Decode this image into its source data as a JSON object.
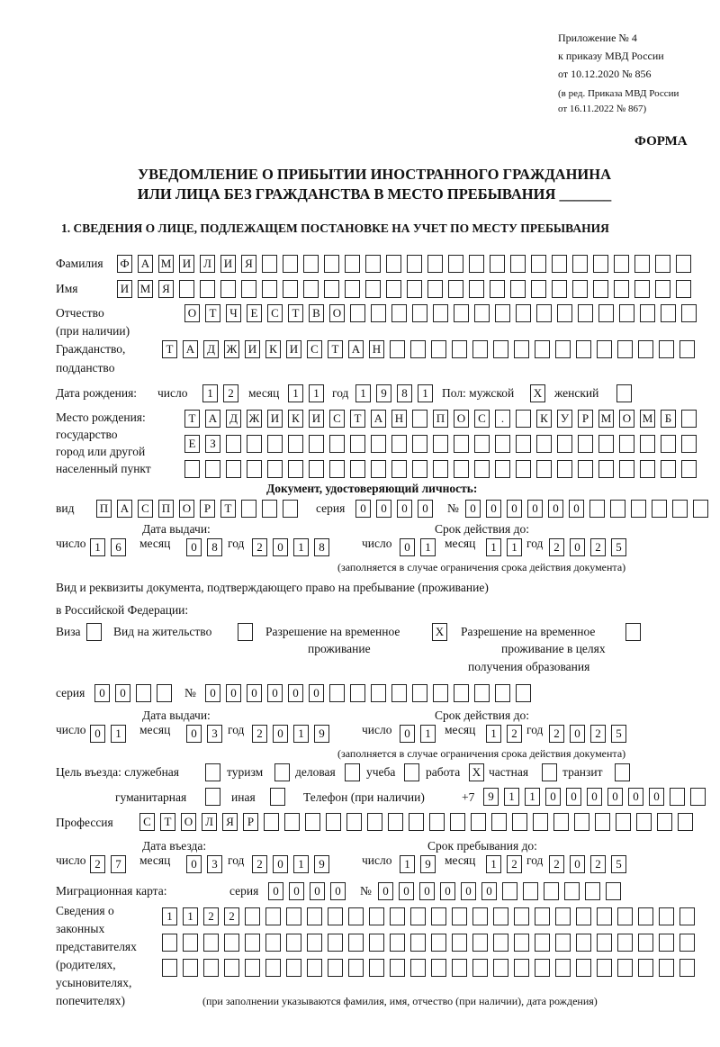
{
  "header": {
    "appendix": "Приложение № 4",
    "order": "к приказу МВД России",
    "order_date": "от 10.12.2020 № 856",
    "edition1": "(в ред. Приказа МВД России",
    "edition2": "от 16.11.2022 № 867)",
    "form_label": "ФОРМА"
  },
  "title": {
    "line1": "УВЕДОМЛЕНИЕ О ПРИБЫТИИ ИНОСТРАННОГО ГРАЖДАНИНА",
    "line2": "ИЛИ ЛИЦА БЕЗ ГРАЖДАНСТВА В МЕСТО ПРЕБЫВАНИЯ _______"
  },
  "section1": {
    "heading": "1. СВЕДЕНИЯ О ЛИЦЕ, ПОДЛЕЖАЩЕМ ПОСТАНОВКЕ НА УЧЕТ ПО МЕСТУ ПРЕБЫВАНИЯ",
    "labels": {
      "surname": "Фамилия",
      "name": "Имя",
      "patronymic1": "Отчество",
      "patronymic2": "(при наличии)",
      "citizenship1": "Гражданство,",
      "citizenship2": "подданство",
      "birth_date": "Дата рождения:",
      "day": "число",
      "month": "месяц",
      "year": "год",
      "sex": "Пол: мужской",
      "female": "женский",
      "birthplace1": "Место рождения:",
      "birthplace2": "государство",
      "birthplace3": "город или другой",
      "birthplace4": "населенный пункт",
      "id_doc": "Документ, удостоверяющий личность:",
      "kind": "вид",
      "series": "серия",
      "number": "№",
      "issue_date": "Дата выдачи:",
      "valid_until": "Срок действия до:",
      "valid_note": "(заполняется в случае ограничения срока действия документа)",
      "permit1": "Вид и реквизиты документа, подтверждающего право на пребывание (проживание)",
      "permit2": "в Российской Федерации:",
      "visa": "Виза",
      "residence": "Вид на жительство",
      "trp1": "Разрешение на временное",
      "trp2": "проживание",
      "trp_edu1": "Разрешение на временное",
      "trp_edu2": "проживание в целях",
      "trp_edu3": "получения образования",
      "purpose": "Цель въезда: служебная",
      "tourism": "туризм",
      "business": "деловая",
      "study": "учеба",
      "work": "работа",
      "private": "частная",
      "transit": "транзит",
      "humanitarian": "гуманитарная",
      "other": "иная",
      "phone": "Телефон (при наличии)",
      "phone_prefix": "+7",
      "profession": "Профессия",
      "entry_date": "Дата въезда:",
      "stay_until": "Срок пребывания до:",
      "migration_card": "Миграционная карта:",
      "reps1": "Сведения о",
      "reps2": "законных",
      "reps3": "представителях",
      "reps4": "(родителях,",
      "reps5": "усыновителях,",
      "reps6": "попечителях)",
      "reps_note": "(при заполнении указываются фамилия, имя, отчество (при наличии), дата рождения)"
    },
    "fields": {
      "surname": [
        "Ф",
        "А",
        "М",
        "И",
        "Л",
        "И",
        "Я"
      ],
      "name": [
        "И",
        "М",
        "Я"
      ],
      "patronymic": [
        "О",
        "Т",
        "Ч",
        "Е",
        "С",
        "Т",
        "В",
        "О"
      ],
      "citizenship": [
        "Т",
        "А",
        "Д",
        "Ж",
        "И",
        "К",
        "И",
        "С",
        "Т",
        "А",
        "Н"
      ],
      "birth_day": [
        "1",
        "2"
      ],
      "birth_month": [
        "1",
        "1"
      ],
      "birth_year": [
        "1",
        "9",
        "8",
        "1"
      ],
      "sex_male": [
        "X"
      ],
      "sex_female": [
        ""
      ],
      "birthplace_1": [
        "Т",
        "А",
        "Д",
        "Ж",
        "И",
        "К",
        "И",
        "С",
        "Т",
        "А",
        "Н",
        "",
        "П",
        "О",
        "С",
        ".",
        "",
        "К",
        "У",
        "Р",
        "М",
        "О",
        "М",
        "Б"
      ],
      "birthplace_2": [
        "Е",
        "З"
      ],
      "birthplace_3": [],
      "doc_kind": [
        "П",
        "А",
        "С",
        "П",
        "О",
        "Р",
        "Т"
      ],
      "doc_series": [
        "0",
        "0",
        "0",
        "0"
      ],
      "doc_number": [
        "0",
        "0",
        "0",
        "0",
        "0",
        "0"
      ],
      "doc_issue_day": [
        "1",
        "6"
      ],
      "doc_issue_month": [
        "0",
        "8"
      ],
      "doc_issue_year": [
        "2",
        "0",
        "1",
        "8"
      ],
      "doc_valid_day": [
        "0",
        "1"
      ],
      "doc_valid_month": [
        "1",
        "1"
      ],
      "doc_valid_year": [
        "2",
        "0",
        "2",
        "5"
      ],
      "permit_visa": [
        ""
      ],
      "permit_residence": [
        ""
      ],
      "permit_trp": [
        "X"
      ],
      "permit_trp_edu": [
        ""
      ],
      "permit_series": [
        "0",
        "0"
      ],
      "permit_number": [
        "0",
        "0",
        "0",
        "0",
        "0",
        "0"
      ],
      "permit_issue_day": [
        "0",
        "1"
      ],
      "permit_issue_month": [
        "0",
        "3"
      ],
      "permit_issue_year": [
        "2",
        "0",
        "1",
        "9"
      ],
      "permit_valid_day": [
        "0",
        "1"
      ],
      "permit_valid_month": [
        "1",
        "2"
      ],
      "permit_valid_year": [
        "2",
        "0",
        "2",
        "5"
      ],
      "purpose_service": [
        ""
      ],
      "purpose_tourism": [
        ""
      ],
      "purpose_business": [
        ""
      ],
      "purpose_study": [
        ""
      ],
      "purpose_work": [
        "X"
      ],
      "purpose_private": [
        ""
      ],
      "purpose_transit": [
        ""
      ],
      "purpose_humanitarian": [
        ""
      ],
      "purpose_other": [
        ""
      ],
      "phone": [
        "9",
        "1",
        "1",
        "0",
        "0",
        "0",
        "0",
        "0",
        "0"
      ],
      "profession": [
        "С",
        "Т",
        "О",
        "Л",
        "Я",
        "Р"
      ],
      "entry_day": [
        "2",
        "7"
      ],
      "entry_month": [
        "0",
        "3"
      ],
      "entry_year": [
        "2",
        "0",
        "1",
        "9"
      ],
      "stay_day": [
        "1",
        "9"
      ],
      "stay_month": [
        "1",
        "2"
      ],
      "stay_year": [
        "2",
        "0",
        "2",
        "5"
      ],
      "mig_series": [
        "0",
        "0",
        "0",
        "0"
      ],
      "mig_number": [
        "0",
        "0",
        "0",
        "0",
        "0",
        "0"
      ],
      "reps_1": [
        "1",
        "1",
        "2",
        "2"
      ],
      "reps_2": [],
      "reps_3": []
    }
  }
}
